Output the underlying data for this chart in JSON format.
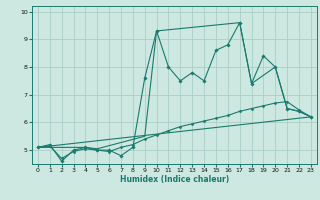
{
  "title": "",
  "xlabel": "Humidex (Indice chaleur)",
  "bg_color": "#cce8e0",
  "line_color": "#1a7a6e",
  "grid_color": "#aacfc8",
  "xlim": [
    -0.5,
    23.5
  ],
  "ylim": [
    4.5,
    10.2
  ],
  "xticks": [
    0,
    1,
    2,
    3,
    4,
    5,
    6,
    7,
    8,
    9,
    10,
    11,
    12,
    13,
    14,
    15,
    16,
    17,
    18,
    19,
    20,
    21,
    22,
    23
  ],
  "yticks": [
    5,
    6,
    7,
    8,
    9,
    10
  ],
  "line1_x": [
    0,
    1,
    2,
    3,
    4,
    5,
    6,
    7,
    8,
    9,
    10,
    11,
    12,
    13,
    14,
    15,
    16,
    17,
    18,
    19,
    20,
    21,
    22,
    23
  ],
  "line1_y": [
    5.1,
    5.2,
    4.6,
    5.0,
    5.1,
    5.0,
    5.0,
    4.8,
    5.1,
    7.6,
    9.3,
    8.0,
    7.5,
    7.8,
    7.5,
    8.6,
    8.8,
    9.6,
    7.4,
    8.4,
    8.0,
    6.5,
    6.4,
    6.2
  ],
  "line2_x": [
    0,
    1,
    2,
    3,
    4,
    5,
    6,
    7,
    8,
    9,
    10,
    11,
    12,
    13,
    14,
    15,
    16,
    17,
    18,
    19,
    20,
    21,
    22,
    23
  ],
  "line2_y": [
    5.1,
    5.15,
    4.7,
    4.95,
    5.05,
    5.0,
    4.95,
    5.1,
    5.2,
    5.4,
    5.55,
    5.7,
    5.85,
    5.95,
    6.05,
    6.15,
    6.25,
    6.4,
    6.5,
    6.6,
    6.7,
    6.75,
    6.45,
    6.2
  ],
  "line3_x": [
    0,
    23
  ],
  "line3_y": [
    5.1,
    6.2
  ],
  "line4_x": [
    0,
    4,
    5,
    9,
    10,
    17,
    18,
    20,
    21,
    22,
    23
  ],
  "line4_y": [
    5.1,
    5.1,
    5.05,
    5.5,
    9.3,
    9.6,
    7.4,
    8.0,
    6.5,
    6.4,
    6.2
  ]
}
